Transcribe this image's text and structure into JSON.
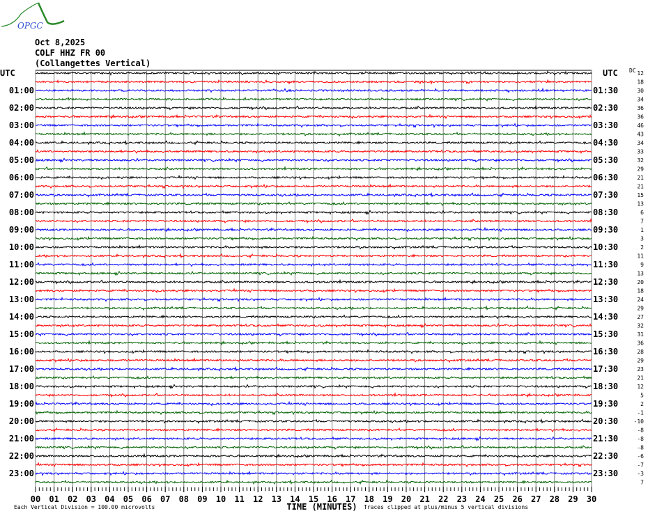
{
  "logo": {
    "text": "OPGC"
  },
  "header": {
    "date": "Oct 8,2025",
    "station": "COLF HHZ FR 00",
    "station_name": "(Collangettes Vertical)"
  },
  "chart_data": {
    "type": "line",
    "subtype": "helicorder",
    "title": "",
    "xlabel": "TIME (MINUTES)",
    "x_ticks": [
      "00",
      "01",
      "02",
      "03",
      "04",
      "05",
      "06",
      "07",
      "08",
      "09",
      "10",
      "11",
      "12",
      "13",
      "14",
      "15",
      "16",
      "17",
      "18",
      "19",
      "20",
      "21",
      "22",
      "23",
      "24",
      "25",
      "26",
      "27",
      "28",
      "29",
      "30"
    ],
    "xlim": [
      0,
      30
    ],
    "left_axis_title": "UTC",
    "right_axis_title": "UTC",
    "left_labels": [
      "01:00",
      "02:00",
      "03:00",
      "04:00",
      "05:00",
      "06:00",
      "07:00",
      "08:00",
      "09:00",
      "10:00",
      "11:00",
      "12:00",
      "13:00",
      "14:00",
      "15:00",
      "16:00",
      "17:00",
      "18:00",
      "19:00",
      "20:00",
      "21:00",
      "22:00",
      "23:00"
    ],
    "right_labels": [
      "01:30",
      "02:30",
      "03:30",
      "04:30",
      "05:30",
      "06:30",
      "07:30",
      "08:30",
      "09:30",
      "10:30",
      "11:30",
      "12:30",
      "13:30",
      "14:30",
      "15:30",
      "16:30",
      "17:30",
      "18:30",
      "19:30",
      "20:30",
      "21:30",
      "22:30",
      "23:30"
    ],
    "dc_label": "DC",
    "dc_values": [
      12,
      18,
      30,
      34,
      36,
      36,
      46,
      43,
      34,
      33,
      32,
      29,
      21,
      21,
      15,
      13,
      6,
      7,
      1,
      3,
      2,
      11,
      9,
      13,
      20,
      18,
      24,
      29,
      27,
      32,
      31,
      36,
      28,
      29,
      23,
      21,
      12,
      5,
      2,
      -1,
      -10,
      -8,
      -8,
      -8,
      -6,
      -7,
      -3,
      7
    ],
    "trace_count": 48,
    "trace_minutes": 30,
    "trace_colors": [
      "#000000",
      "#ff0000",
      "#0000ff",
      "#006400"
    ],
    "grid": true,
    "grid_color": "#808080"
  },
  "footer": {
    "scale": "Each Vertical Division =  100.00 microvolts",
    "axis_title": "TIME (MINUTES)",
    "clip_note": "Traces clipped at plus/minus 5 vertical divisions"
  }
}
